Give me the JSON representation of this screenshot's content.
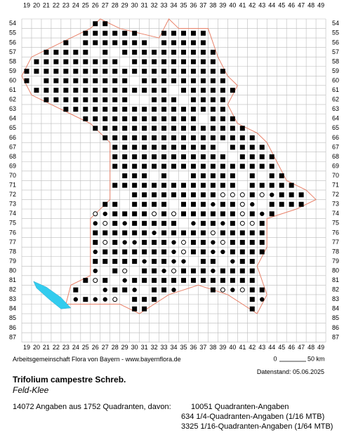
{
  "map": {
    "columns": [
      19,
      20,
      21,
      22,
      23,
      24,
      25,
      26,
      27,
      28,
      29,
      30,
      31,
      32,
      33,
      34,
      35,
      36,
      37,
      38,
      39,
      40,
      41,
      42,
      43,
      44,
      45,
      46,
      47,
      48,
      49
    ],
    "rows": [
      54,
      55,
      56,
      57,
      58,
      59,
      60,
      61,
      62,
      63,
      64,
      65,
      66,
      67,
      68,
      69,
      70,
      71,
      72,
      73,
      74,
      75,
      76,
      77,
      78,
      79,
      80,
      81,
      82,
      83,
      84,
      85,
      86,
      87
    ],
    "scale": {
      "start": "0",
      "end": "50 km"
    }
  },
  "footer": {
    "credit": "Arbeitsgemeinschaft Flora von Bayern - www.bayernflora.de",
    "date": "Datenstand: 05.06.2025",
    "species": "Trifolium campestre Schreb.",
    "common_name": "Feld-Klee",
    "summary": "14072 Angaben aus 1752 Quadranten, davon:",
    "details": [
      "10051 Quadranten-Angaben",
      "634 1/4-Quadranten-Angaben (1/16 MTB)",
      "3325 1/16-Quadranten-Angaben (1/64 MTB)"
    ]
  }
}
